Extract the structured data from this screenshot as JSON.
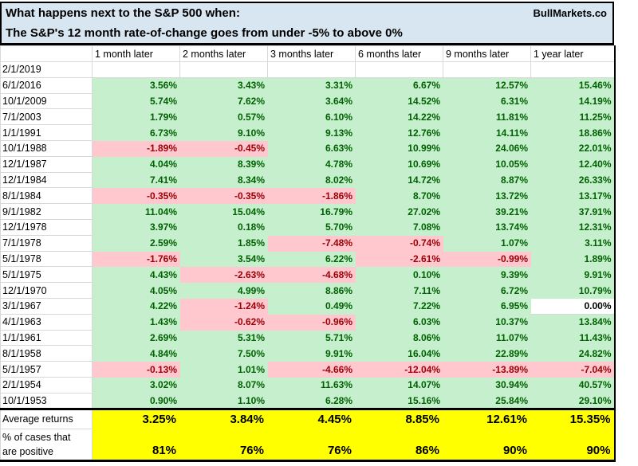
{
  "brand": "BullMarkets.co",
  "title": {
    "line1": "What happens next to the S&P 500 when:",
    "line2": "The S&P's 12 month rate-of-change goes from under -5% to above 0%"
  },
  "colors": {
    "title_bg": "#d7e6f1",
    "positive_bg": "#c6efce",
    "positive_text": "#006100",
    "negative_bg": "#ffc7ce",
    "negative_text": "#9c0006",
    "summary_bg": "#ffff00",
    "gridline": "#d8d8d8"
  },
  "chart_data": {
    "type": "table",
    "columns": [
      "",
      "1 month later",
      "2 months later",
      "3 months later",
      "6 months later",
      "9 months later",
      "1 year later"
    ],
    "rows": [
      {
        "date": "2/1/2019",
        "values": [
          "",
          "",
          "",
          "",
          "",
          ""
        ],
        "colors": [
          "e",
          "e",
          "e",
          "e",
          "e",
          "e"
        ]
      },
      {
        "date": "6/1/2016",
        "values": [
          "3.56%",
          "3.43%",
          "3.31%",
          "6.67%",
          "12.57%",
          "15.46%"
        ],
        "colors": [
          "g",
          "g",
          "g",
          "g",
          "g",
          "g"
        ]
      },
      {
        "date": "10/1/2009",
        "values": [
          "5.74%",
          "7.62%",
          "3.64%",
          "14.52%",
          "6.31%",
          "14.19%"
        ],
        "colors": [
          "g",
          "g",
          "g",
          "g",
          "g",
          "g"
        ]
      },
      {
        "date": "7/1/2003",
        "values": [
          "1.79%",
          "0.57%",
          "6.10%",
          "14.22%",
          "11.81%",
          "11.25%"
        ],
        "colors": [
          "g",
          "g",
          "g",
          "g",
          "g",
          "g"
        ]
      },
      {
        "date": "1/1/1991",
        "values": [
          "6.73%",
          "9.10%",
          "9.13%",
          "12.76%",
          "14.11%",
          "18.86%"
        ],
        "colors": [
          "g",
          "g",
          "g",
          "g",
          "g",
          "g"
        ]
      },
      {
        "date": "10/1/1988",
        "values": [
          "-1.89%",
          "-0.45%",
          "6.63%",
          "10.99%",
          "24.06%",
          "22.01%"
        ],
        "colors": [
          "r",
          "r",
          "g",
          "g",
          "g",
          "g"
        ]
      },
      {
        "date": "12/1/1987",
        "values": [
          "4.04%",
          "8.39%",
          "4.78%",
          "10.69%",
          "10.05%",
          "12.40%"
        ],
        "colors": [
          "g",
          "g",
          "g",
          "g",
          "g",
          "g"
        ]
      },
      {
        "date": "12/1/1984",
        "values": [
          "7.41%",
          "8.34%",
          "8.02%",
          "14.72%",
          "8.87%",
          "26.33%"
        ],
        "colors": [
          "g",
          "g",
          "g",
          "g",
          "g",
          "g"
        ]
      },
      {
        "date": "8/1/1984",
        "values": [
          "-0.35%",
          "-0.35%",
          "-1.86%",
          "8.70%",
          "13.72%",
          "13.17%"
        ],
        "colors": [
          "r",
          "r",
          "r",
          "g",
          "g",
          "g"
        ]
      },
      {
        "date": "9/1/1982",
        "values": [
          "11.04%",
          "15.04%",
          "16.79%",
          "27.02%",
          "39.21%",
          "37.91%"
        ],
        "colors": [
          "g",
          "g",
          "g",
          "g",
          "g",
          "g"
        ]
      },
      {
        "date": "12/1/1978",
        "values": [
          "3.97%",
          "0.18%",
          "5.70%",
          "7.08%",
          "13.74%",
          "12.31%"
        ],
        "colors": [
          "g",
          "g",
          "g",
          "g",
          "g",
          "g"
        ]
      },
      {
        "date": "7/1/1978",
        "values": [
          "2.59%",
          "1.85%",
          "-7.48%",
          "-0.74%",
          "1.07%",
          "3.11%"
        ],
        "colors": [
          "g",
          "g",
          "r",
          "r",
          "g",
          "g"
        ]
      },
      {
        "date": "5/1/1978",
        "values": [
          "-1.76%",
          "3.54%",
          "6.22%",
          "-2.61%",
          "-0.99%",
          "1.89%"
        ],
        "colors": [
          "r",
          "g",
          "g",
          "r",
          "r",
          "g"
        ]
      },
      {
        "date": "5/1/1975",
        "values": [
          "4.43%",
          "-2.63%",
          "-4.68%",
          "0.10%",
          "9.39%",
          "9.91%"
        ],
        "colors": [
          "g",
          "r",
          "r",
          "g",
          "g",
          "g"
        ]
      },
      {
        "date": "12/1/1970",
        "values": [
          "4.05%",
          "4.99%",
          "8.86%",
          "7.11%",
          "6.72%",
          "10.79%"
        ],
        "colors": [
          "g",
          "g",
          "g",
          "g",
          "g",
          "g"
        ]
      },
      {
        "date": "3/1/1967",
        "values": [
          "4.22%",
          "-1.24%",
          "0.49%",
          "7.22%",
          "6.95%",
          "0.00%"
        ],
        "colors": [
          "g",
          "r",
          "g",
          "g",
          "g",
          "w"
        ]
      },
      {
        "date": "4/1/1963",
        "values": [
          "1.43%",
          "-0.62%",
          "-0.96%",
          "6.03%",
          "10.37%",
          "13.84%"
        ],
        "colors": [
          "g",
          "r",
          "r",
          "g",
          "g",
          "g"
        ]
      },
      {
        "date": "1/1/1961",
        "values": [
          "2.69%",
          "5.31%",
          "5.71%",
          "8.06%",
          "11.07%",
          "11.43%"
        ],
        "colors": [
          "g",
          "g",
          "g",
          "g",
          "g",
          "g"
        ]
      },
      {
        "date": "8/1/1958",
        "values": [
          "4.84%",
          "7.50%",
          "9.91%",
          "16.04%",
          "22.89%",
          "24.82%"
        ],
        "colors": [
          "g",
          "g",
          "g",
          "g",
          "g",
          "g"
        ]
      },
      {
        "date": "5/1/1957",
        "values": [
          "-0.13%",
          "1.01%",
          "-4.66%",
          "-12.04%",
          "-13.89%",
          "-7.04%"
        ],
        "colors": [
          "r",
          "g",
          "r",
          "r",
          "r",
          "r"
        ]
      },
      {
        "date": "2/1/1954",
        "values": [
          "3.02%",
          "8.07%",
          "11.63%",
          "14.07%",
          "30.94%",
          "40.57%"
        ],
        "colors": [
          "g",
          "g",
          "g",
          "g",
          "g",
          "g"
        ]
      },
      {
        "date": "10/1/1953",
        "values": [
          "0.90%",
          "1.10%",
          "6.28%",
          "15.16%",
          "25.84%",
          "29.10%"
        ],
        "colors": [
          "g",
          "g",
          "g",
          "g",
          "g",
          "g"
        ]
      }
    ],
    "summary_rows": [
      {
        "label_lines": [
          "Average returns"
        ],
        "values": [
          "3.25%",
          "3.84%",
          "4.45%",
          "8.85%",
          "12.61%",
          "15.35%"
        ]
      },
      {
        "label_lines": [
          "% of cases that",
          "are positive"
        ],
        "values": [
          "81%",
          "76%",
          "76%",
          "86%",
          "90%",
          "90%"
        ]
      }
    ]
  }
}
